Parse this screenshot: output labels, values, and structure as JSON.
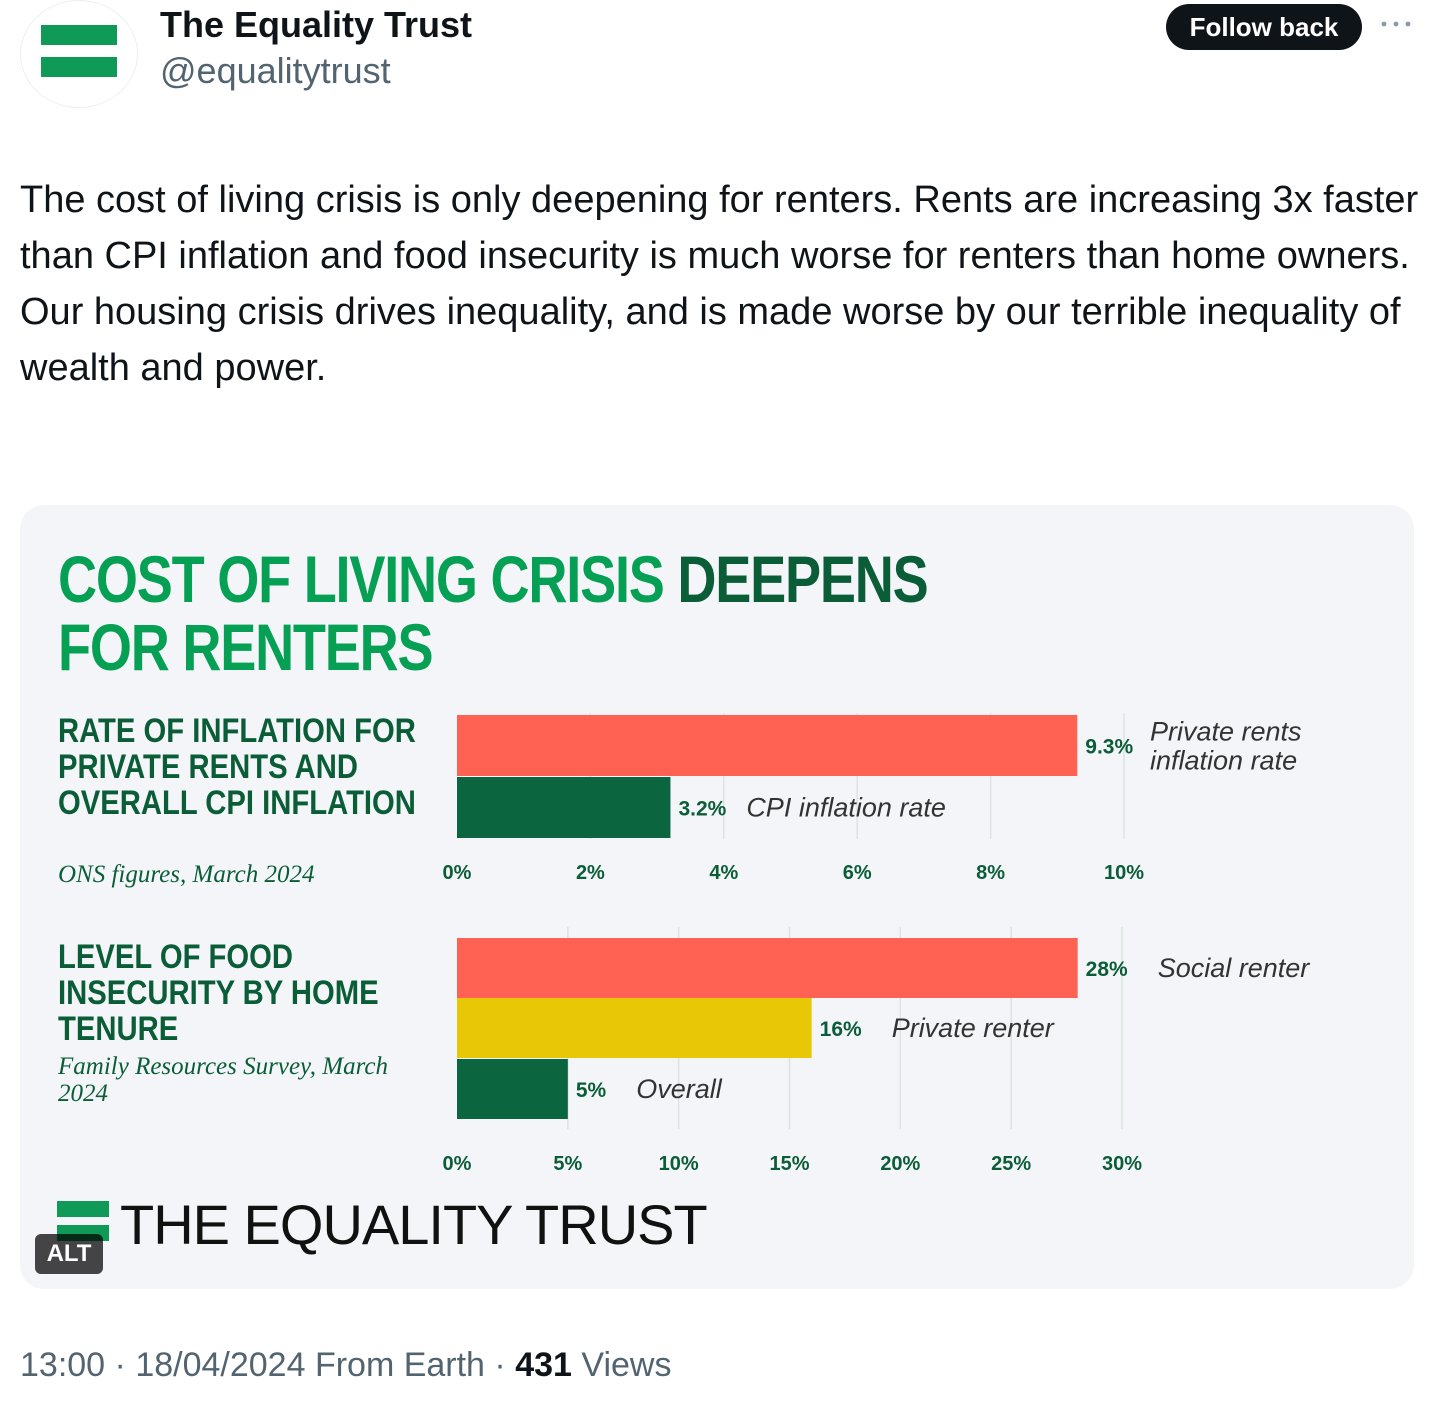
{
  "account": {
    "display_name": "The Equality Trust",
    "handle": "@equalitytrust",
    "avatar_icon": "equality-trust-logo-icon",
    "follow_label": "Follow back",
    "more_icon": "more-horizontal-icon"
  },
  "tweet": {
    "text": "The cost of living crisis is only deepening for renters. Rents are increasing 3x faster than CPI inflation and food insecurity is much worse for renters than home owners.\nOur housing crisis drives inequality, and is made worse by our terrible inequality of wealth and power."
  },
  "media": {
    "alt_badge": "ALT",
    "headline_part1": "COST OF LIVING CRISIS",
    "headline_part2": "DEEPENS",
    "headline_line2": "FOR RENTERS",
    "logo_text": "THE EQUALITY TRUST",
    "colors": {
      "red": "#ff6152",
      "green": "#0b6640",
      "yellow": "#e8c706",
      "title_green": "#06a055",
      "dark_green": "#0b5d37"
    }
  },
  "chart_data": [
    {
      "type": "bar",
      "orientation": "horizontal",
      "title": "RATE OF INFLATION FOR PRIVATE RENTS AND OVERALL CPI INFLATION",
      "subtitle": "ONS figures, March 2024",
      "categories": [
        "Private rents inflation rate",
        "CPI inflation rate"
      ],
      "values": [
        9.3,
        3.2
      ],
      "value_labels": [
        "9.3%",
        "3.2%"
      ],
      "colors": [
        "#ff6152",
        "#0b6640"
      ],
      "xlim": [
        0,
        10
      ],
      "x_ticks": [
        "0%",
        "2%",
        "4%",
        "6%",
        "8%",
        "10%"
      ],
      "grid": true
    },
    {
      "type": "bar",
      "orientation": "horizontal",
      "title": "LEVEL OF FOOD INSECURITY BY HOME TENURE",
      "subtitle": "Family Resources Survey, March 2024",
      "categories": [
        "Social renter",
        "Private renter",
        "Overall"
      ],
      "values": [
        28,
        16,
        5
      ],
      "value_labels": [
        "28%",
        "16%",
        "5%"
      ],
      "colors": [
        "#ff6152",
        "#e8c706",
        "#0b6640"
      ],
      "xlim": [
        0,
        30
      ],
      "x_ticks": [
        "0%",
        "5%",
        "10%",
        "15%",
        "20%",
        "25%",
        "30%"
      ],
      "grid": true
    }
  ],
  "footer": {
    "time": "13:00",
    "date": "18/04/2024",
    "source": "From Earth",
    "views_count": "431",
    "views_label": "Views"
  }
}
